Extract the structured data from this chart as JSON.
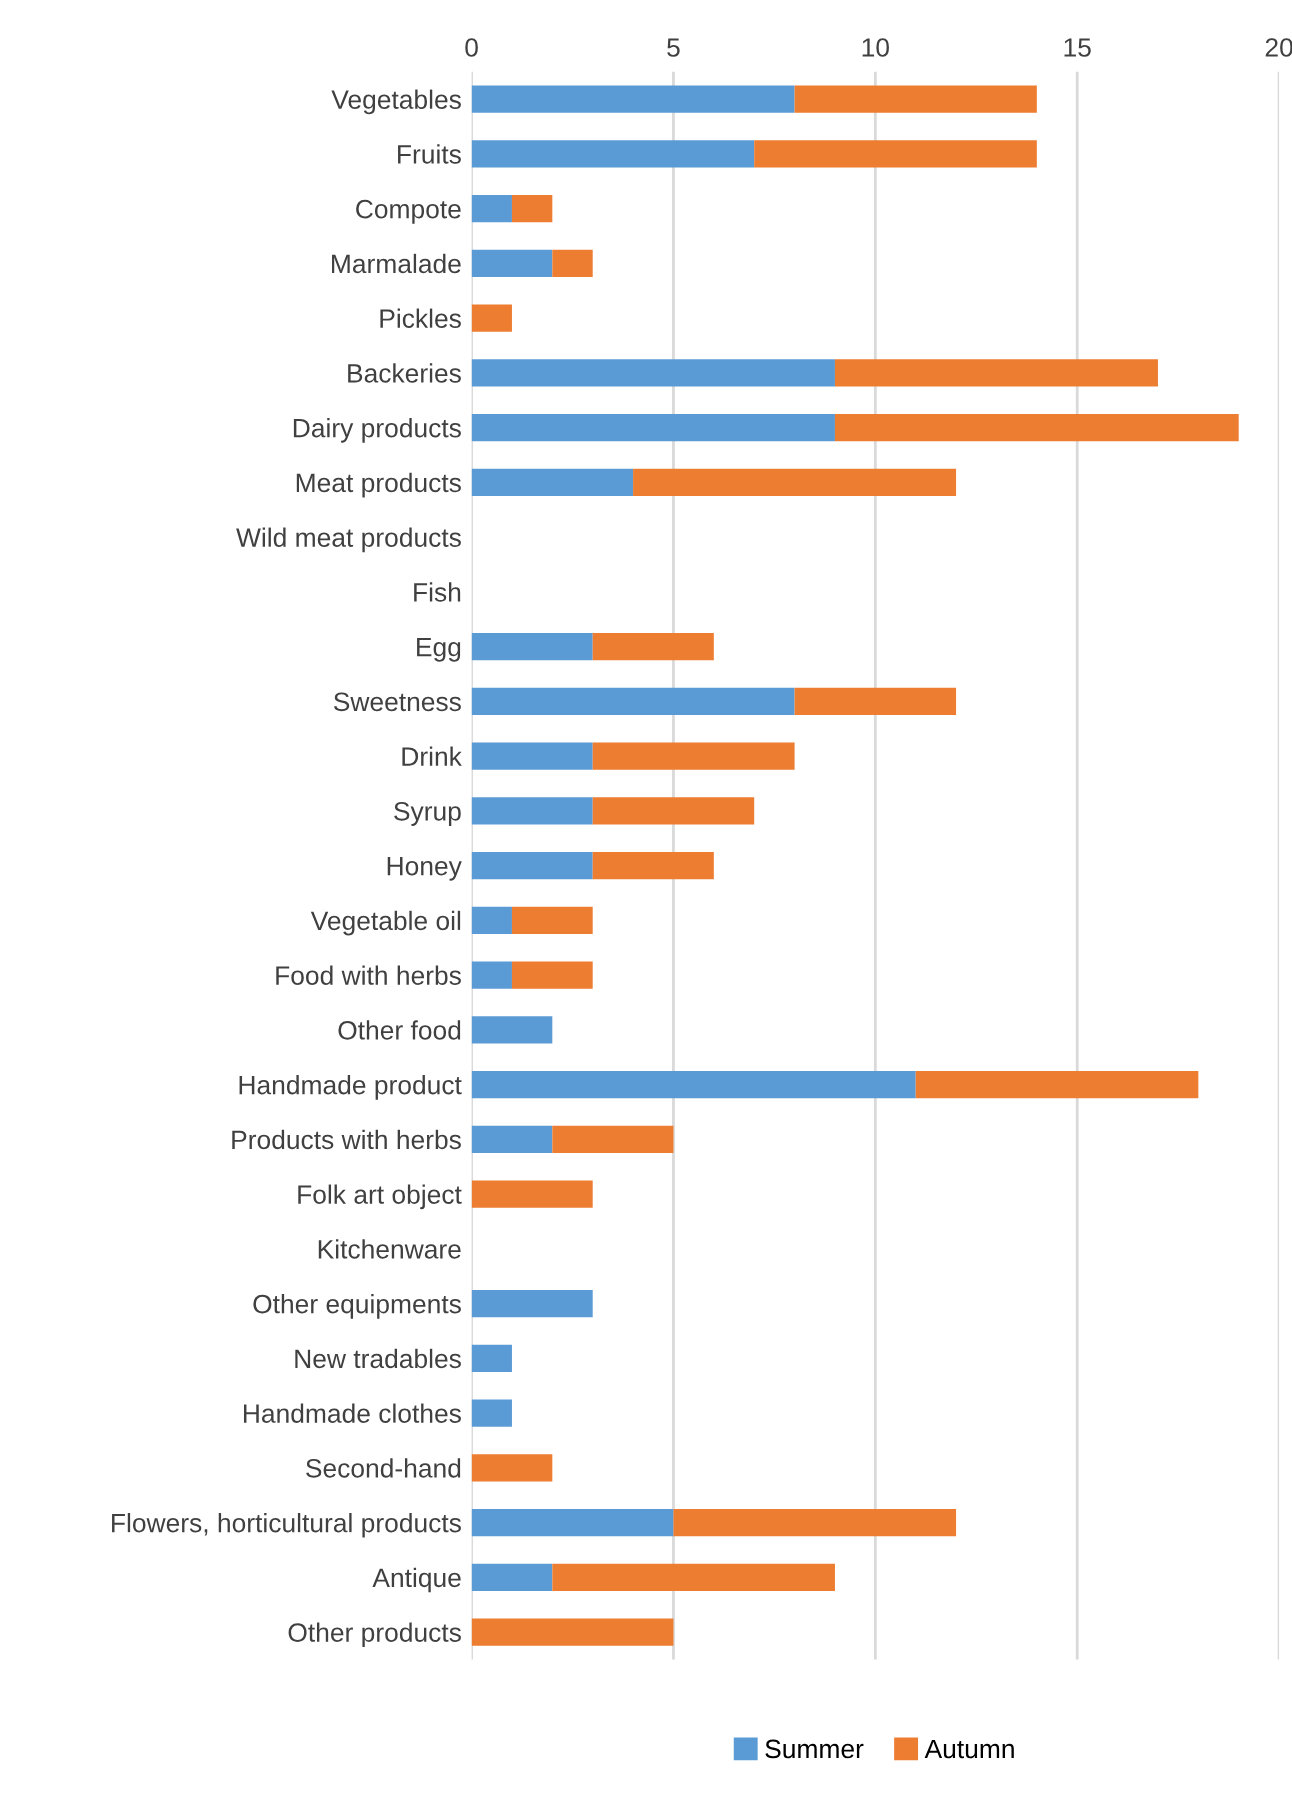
{
  "chart_data": {
    "type": "bar",
    "orientation": "horizontal",
    "stacked": true,
    "categories": [
      "Vegetables",
      "Fruits",
      "Compote",
      "Marmalade",
      "Pickles",
      "Backeries",
      "Dairy products",
      "Meat products",
      "Wild meat products",
      "Fish",
      "Egg",
      "Sweetness",
      "Drink",
      "Syrup",
      "Honey",
      "Vegetable oil",
      "Food with herbs",
      "Other food",
      "Handmade product",
      "Products with herbs",
      "Folk art object",
      "Kitchenware",
      "Other equipments",
      "New tradables",
      "Handmade clothes",
      "Second-hand",
      "Flowers, horticultural products",
      "Antique",
      "Other products"
    ],
    "series": [
      {
        "name": "Summer",
        "color": "#5b9bd5",
        "values": [
          8,
          7,
          1,
          2,
          0,
          9,
          9,
          4,
          0,
          0,
          3,
          8,
          3,
          3,
          3,
          1,
          1,
          2,
          11,
          2,
          0,
          0,
          3,
          1,
          1,
          0,
          5,
          2,
          0
        ]
      },
      {
        "name": "Autumn",
        "color": "#ed7d31",
        "values": [
          6,
          7,
          1,
          1,
          1,
          8,
          10,
          8,
          0,
          0,
          3,
          4,
          5,
          4,
          3,
          2,
          2,
          0,
          7,
          3,
          3,
          0,
          0,
          0,
          0,
          2,
          7,
          7,
          5
        ]
      }
    ],
    "xlim": [
      0,
      20
    ],
    "xticks": [
      0,
      5,
      10,
      15,
      20
    ],
    "grid": "x",
    "legend": "bottom"
  }
}
